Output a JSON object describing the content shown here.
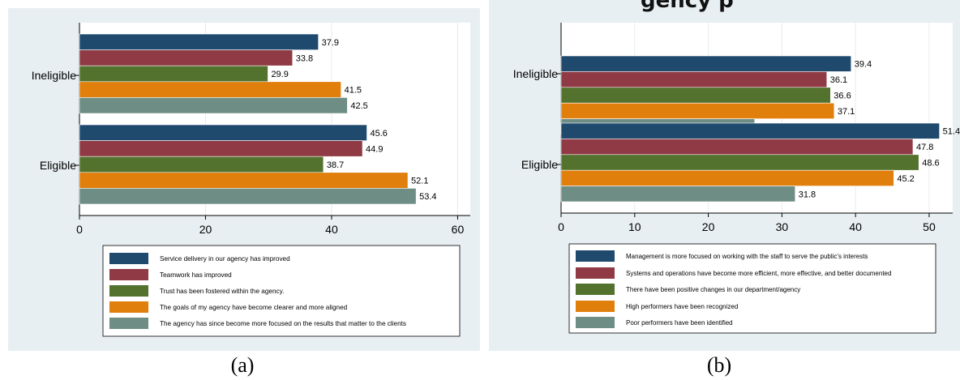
{
  "panels": [
    {
      "caption": "(a)",
      "cropped_title": "",
      "chart_data": {
        "type": "bar",
        "orientation": "horizontal",
        "title": "",
        "xlabel": "",
        "ylabel": "",
        "categories": [
          "Ineligible",
          "Eligible"
        ],
        "xlim": [
          0,
          62
        ],
        "xticks": [
          0,
          20,
          40,
          60
        ],
        "grid": true,
        "legend_position": "bottom",
        "series": [
          {
            "name": "Service delivery in our agency has improved",
            "color": "#1f4a6e",
            "values": [
              37.9,
              45.6
            ]
          },
          {
            "name": "Teamwork has improved",
            "color": "#8f3a44",
            "values": [
              33.8,
              44.9
            ]
          },
          {
            "name": "Trust has been fostered within the agency.",
            "color": "#53722e",
            "values": [
              29.9,
              38.7
            ]
          },
          {
            "name": "The goals of my agency have become clearer and more aligned",
            "color": "#e07f0c",
            "values": [
              41.5,
              52.1
            ]
          },
          {
            "name": "The agency has since become more focused on the results that matter to the clients",
            "color": "#6e8d84",
            "values": [
              42.5,
              53.4
            ]
          }
        ]
      }
    },
    {
      "caption": "(b)",
      "cropped_title": "gency p",
      "chart_data": {
        "type": "bar",
        "orientation": "horizontal",
        "title": "",
        "xlabel": "",
        "ylabel": "",
        "categories": [
          "Ineligible",
          "Eligible"
        ],
        "xlim": [
          0,
          53.2
        ],
        "xticks": [
          0,
          10,
          20,
          30,
          40,
          50
        ],
        "grid": true,
        "legend_position": "bottom",
        "series": [
          {
            "name": "Management is more focused on working with the staff to serve the public's interests",
            "color": "#1f4a6e",
            "values": [
              39.4,
              51.4
            ]
          },
          {
            "name": "Systems and operations have become more efficient, more effective, and better documented",
            "color": "#8f3a44",
            "values": [
              36.1,
              47.8
            ]
          },
          {
            "name": "There have been positive changes in our department/agency",
            "color": "#53722e",
            "values": [
              36.6,
              48.6
            ]
          },
          {
            "name": "High performers have been recognized",
            "color": "#e07f0c",
            "values": [
              37.1,
              45.2
            ]
          },
          {
            "name": "Poor performers have been identified",
            "color": "#6e8d84",
            "values": [
              26.3,
              31.8
            ]
          }
        ]
      }
    }
  ]
}
